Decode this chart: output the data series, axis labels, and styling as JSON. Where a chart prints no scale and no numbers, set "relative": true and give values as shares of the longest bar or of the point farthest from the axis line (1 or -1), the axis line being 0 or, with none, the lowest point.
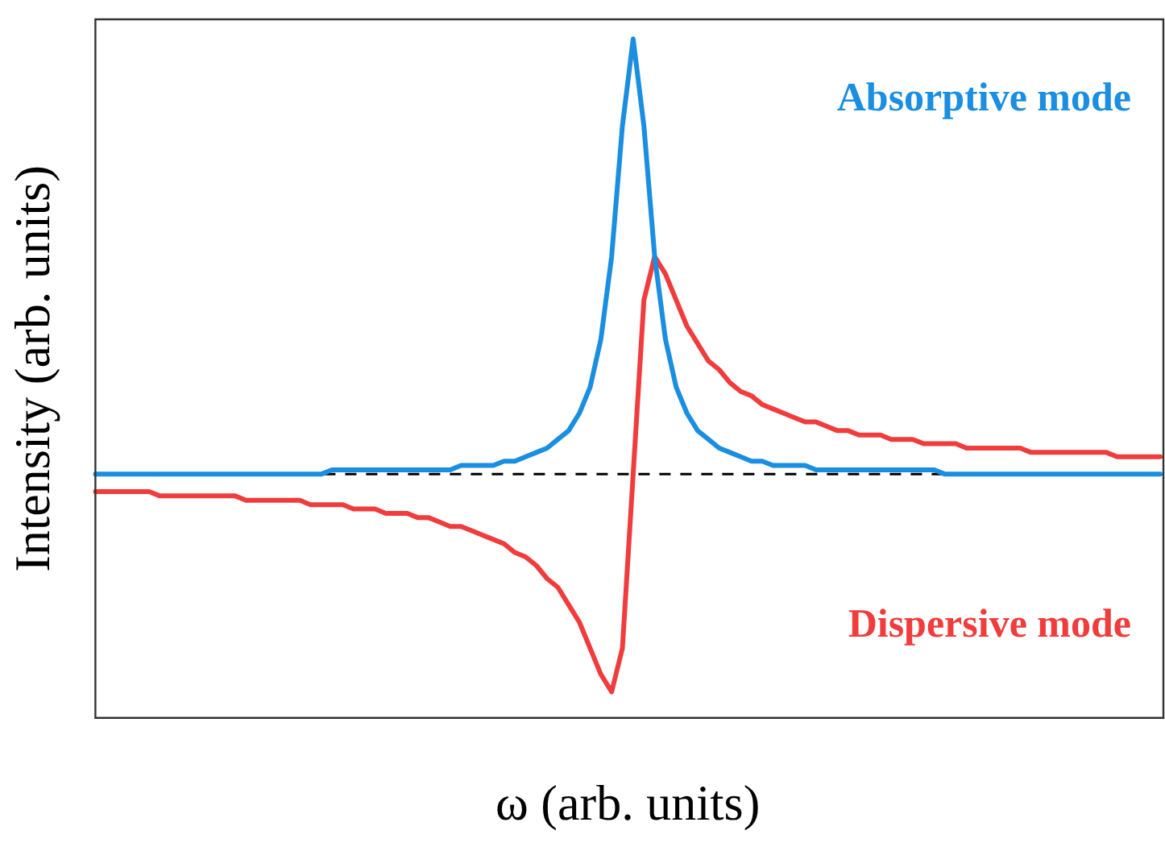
{
  "chart_data": {
    "type": "line",
    "relative": true,
    "xlabel": "ω (arb. units)",
    "ylabel": "Intensity (arb. units)",
    "grid": false,
    "legend": false,
    "categories": [
      null,
      null,
      null,
      null,
      null,
      null,
      null,
      null,
      null,
      null,
      null,
      null,
      null,
      null,
      null,
      null,
      null,
      null,
      null,
      null,
      null,
      null,
      null,
      null,
      null,
      null,
      null,
      null,
      null,
      null,
      null,
      null,
      null,
      null,
      null,
      null,
      null,
      null,
      null,
      null,
      null,
      null,
      null,
      null,
      null,
      null,
      null,
      null,
      null,
      null,
      null,
      null,
      null,
      null,
      null,
      null,
      null,
      null,
      null,
      null,
      null,
      null,
      null,
      null,
      null,
      null,
      null,
      null,
      null,
      null,
      null,
      null,
      null,
      null,
      null,
      null,
      null,
      null,
      null,
      null,
      null,
      null,
      null,
      null,
      null,
      null,
      null,
      null,
      null,
      null,
      null,
      null,
      null,
      null,
      null,
      null,
      null,
      null,
      null,
      null
    ],
    "series": [
      {
        "name": "Absorptive mode",
        "color": "#1a8ee0",
        "values": [
          0,
          0,
          0,
          0,
          0,
          0,
          0,
          0,
          0,
          0,
          0,
          0,
          0,
          0,
          0,
          0,
          0,
          0,
          0,
          0,
          0,
          0,
          0.01,
          0.01,
          0.01,
          0.01,
          0.01,
          0.01,
          0.01,
          0.01,
          0.01,
          0.01,
          0.01,
          0.01,
          0.02,
          0.02,
          0.02,
          0.02,
          0.03,
          0.03,
          0.04,
          0.05,
          0.06,
          0.08,
          0.1,
          0.14,
          0.2,
          0.31,
          0.5,
          0.8,
          1,
          0.8,
          0.5,
          0.31,
          0.2,
          0.14,
          0.1,
          0.08,
          0.06,
          0.05,
          0.04,
          0.03,
          0.03,
          0.02,
          0.02,
          0.02,
          0.02,
          0.01,
          0.01,
          0.01,
          0.01,
          0.01,
          0.01,
          0.01,
          0.01,
          0.01,
          0.01,
          0.01,
          0.01,
          0,
          0,
          0,
          0,
          0,
          0,
          0,
          0,
          0,
          0,
          0,
          0,
          0,
          0,
          0,
          0,
          0,
          0,
          0,
          0,
          0
        ]
      },
      {
        "name": "Dispersive mode",
        "color": "#f03c3c",
        "values": [
          -0.04,
          -0.04,
          -0.04,
          -0.04,
          -0.04,
          -0.04,
          -0.05,
          -0.05,
          -0.05,
          -0.05,
          -0.05,
          -0.05,
          -0.05,
          -0.05,
          -0.06,
          -0.06,
          -0.06,
          -0.06,
          -0.06,
          -0.06,
          -0.07,
          -0.07,
          -0.07,
          -0.07,
          -0.08,
          -0.08,
          -0.08,
          -0.09,
          -0.09,
          -0.09,
          -0.1,
          -0.1,
          -0.11,
          -0.12,
          -0.12,
          -0.13,
          -0.14,
          -0.15,
          -0.16,
          -0.18,
          -0.19,
          -0.21,
          -0.24,
          -0.26,
          -0.3,
          -0.34,
          -0.4,
          -0.46,
          -0.5,
          -0.4,
          0,
          0.4,
          0.5,
          0.46,
          0.4,
          0.34,
          0.3,
          0.26,
          0.24,
          0.21,
          0.19,
          0.18,
          0.16,
          0.15,
          0.14,
          0.13,
          0.12,
          0.12,
          0.11,
          0.1,
          0.1,
          0.09,
          0.09,
          0.09,
          0.08,
          0.08,
          0.08,
          0.07,
          0.07,
          0.07,
          0.07,
          0.06,
          0.06,
          0.06,
          0.06,
          0.06,
          0.06,
          0.05,
          0.05,
          0.05,
          0.05,
          0.05,
          0.05,
          0.05,
          0.05,
          0.04,
          0.04,
          0.04,
          0.04,
          0.04
        ]
      }
    ],
    "ref_lines": [
      {
        "axis": "y",
        "value": 0,
        "line_style": "dashed",
        "color": "#000000"
      }
    ]
  }
}
